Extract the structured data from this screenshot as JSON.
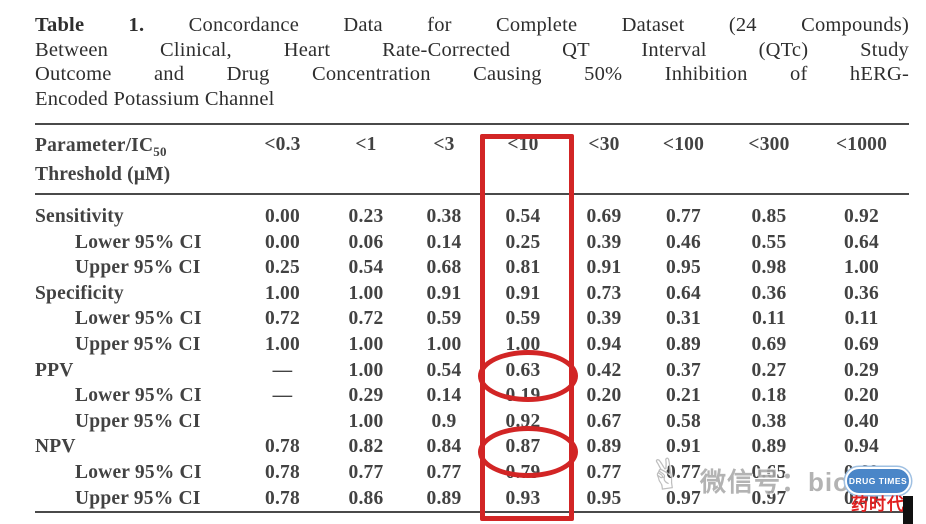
{
  "title": {
    "label": "Table 1.",
    "line1_rest": "Concordance Data for Complete Dataset (24 Compounds)",
    "line2": "Between Clinical, Heart Rate-Corrected QT Interval (QTc) Study",
    "line3": "Outcome and Drug Concentration Causing 50% Inhibition of hERG-",
    "line4": "Encoded Potassium Channel"
  },
  "table": {
    "param_header_line1": "Parameter/IC",
    "param_header_sub": "50",
    "param_header_line2": "Threshold (μM)",
    "columns": [
      "<0.3",
      "<1",
      "<3",
      "<10",
      "<30",
      "<100",
      "<300",
      "<1000"
    ],
    "rows": [
      {
        "label": "Sensitivity",
        "indent": false,
        "values": [
          "0.00",
          "0.23",
          "0.38",
          "0.54",
          "0.69",
          "0.77",
          "0.85",
          "0.92"
        ]
      },
      {
        "label": "Lower 95% CI",
        "indent": true,
        "values": [
          "0.00",
          "0.06",
          "0.14",
          "0.25",
          "0.39",
          "0.46",
          "0.55",
          "0.64"
        ]
      },
      {
        "label": "Upper 95% CI",
        "indent": true,
        "values": [
          "0.25",
          "0.54",
          "0.68",
          "0.81",
          "0.91",
          "0.95",
          "0.98",
          "1.00"
        ]
      },
      {
        "label": "Specificity",
        "indent": false,
        "values": [
          "1.00",
          "1.00",
          "0.91",
          "0.91",
          "0.73",
          "0.64",
          "0.36",
          "0.36"
        ]
      },
      {
        "label": "Lower 95% CI",
        "indent": true,
        "values": [
          "0.72",
          "0.72",
          "0.59",
          "0.59",
          "0.39",
          "0.31",
          "0.11",
          "0.11"
        ]
      },
      {
        "label": "Upper 95% CI",
        "indent": true,
        "values": [
          "1.00",
          "1.00",
          "1.00",
          "1.00",
          "0.94",
          "0.89",
          "0.69",
          "0.69"
        ]
      },
      {
        "label": "PPV",
        "indent": false,
        "values": [
          "—",
          "1.00",
          "0.54",
          "0.63",
          "0.42",
          "0.37",
          "0.27",
          "0.29"
        ]
      },
      {
        "label": "Lower 95% CI",
        "indent": true,
        "values": [
          "—",
          "0.29",
          "0.14",
          "0.19",
          "0.20",
          "0.21",
          "0.18",
          "0.20"
        ]
      },
      {
        "label": "Upper 95% CI",
        "indent": true,
        "values": [
          "",
          "1.00",
          "0.9",
          "0.92",
          "0.67",
          "0.58",
          "0.38",
          "0.40"
        ]
      },
      {
        "label": "NPV",
        "indent": false,
        "values": [
          "0.78",
          "0.82",
          "0.84",
          "0.87",
          "0.89",
          "0.91",
          "0.89",
          "0.94"
        ]
      },
      {
        "label": "Lower 95% CI",
        "indent": true,
        "values": [
          "0.78",
          "0.77",
          "0.77",
          "0.79",
          "0.77",
          "0.77",
          "0.65",
          "0.69"
        ]
      },
      {
        "label": "Upper 95% CI",
        "indent": true,
        "values": [
          "0.78",
          "0.86",
          "0.89",
          "0.93",
          "0.95",
          "0.97",
          "0.97",
          "0.99"
        ]
      }
    ]
  },
  "annotations": {
    "highlighted_column": "<10",
    "circled_values": [
      "0.63",
      "0.87"
    ],
    "annotation_color": "#d22525"
  },
  "watermark": {
    "hand_icon": "✌",
    "text": "微信号：biotech",
    "badge_text": "DRUG TIMES",
    "badge_color": "#4a86c8",
    "stamp_text": "药时代",
    "stamp_color": "#e02020"
  }
}
